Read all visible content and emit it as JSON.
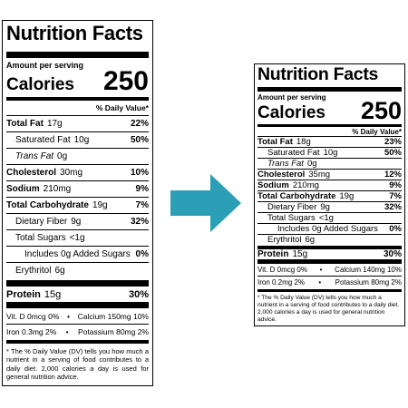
{
  "left": {
    "title": "Nutrition Facts",
    "amount_per_serving": "Amount per serving",
    "calories_label": "Calories",
    "calories_value": "250",
    "dv_header": "% Daily Value*",
    "rows": [
      {
        "label": "Total Fat",
        "amount": "17g",
        "dv": "22%",
        "bold": true,
        "indent": 0
      },
      {
        "label": "Saturated Fat",
        "amount": "10g",
        "dv": "50%",
        "bold": false,
        "indent": 1
      },
      {
        "label": "Trans Fat",
        "amount": "0g",
        "dv": "",
        "bold": false,
        "indent": 1,
        "italic": true
      },
      {
        "label": "Cholesterol",
        "amount": "30mg",
        "dv": "10%",
        "bold": true,
        "indent": 0
      },
      {
        "label": "Sodium",
        "amount": "210mg",
        "dv": "9%",
        "bold": true,
        "indent": 0
      },
      {
        "label": "Total Carbohydrate",
        "amount": "19g",
        "dv": "7%",
        "bold": true,
        "indent": 0
      },
      {
        "label": "Dietary Fiber",
        "amount": "9g",
        "dv": "32%",
        "bold": false,
        "indent": 1
      },
      {
        "label": "Total Sugars",
        "amount": "<1g",
        "dv": "",
        "bold": false,
        "indent": 1
      },
      {
        "label": "Includes 0g Added Sugars",
        "amount": "",
        "dv": "0%",
        "bold": false,
        "indent": 2
      },
      {
        "label": "Erythritol",
        "amount": "6g",
        "dv": "",
        "bold": false,
        "indent": 1
      }
    ],
    "protein": {
      "label": "Protein",
      "amount": "15g",
      "dv": "30%"
    },
    "vitamins": [
      [
        "Vit. D 0mcg 0%",
        "Calcium 150mg 10%"
      ],
      [
        "Iron 0.3mg 2%",
        "Potassium 80mg 2%"
      ]
    ],
    "footnote": "* The % Daily Value (DV) tells you how much a nutrient in a serving of food contributes to a daily diet. 2,000 calories a day is used for general nutrition advice."
  },
  "right": {
    "title": "Nutrition Facts",
    "amount_per_serving": "Amount per serving",
    "calories_label": "Calories",
    "calories_value": "250",
    "dv_header": "% Daily Value*",
    "rows": [
      {
        "label": "Total Fat",
        "amount": "18g",
        "dv": "23%",
        "bold": true,
        "indent": 0
      },
      {
        "label": "Saturated Fat",
        "amount": "10g",
        "dv": "50%",
        "bold": false,
        "indent": 1
      },
      {
        "label": "Trans Fat",
        "amount": "0g",
        "dv": "",
        "bold": false,
        "indent": 1,
        "italic": true
      },
      {
        "label": "Cholesterol",
        "amount": "35mg",
        "dv": "12%",
        "bold": true,
        "indent": 0
      },
      {
        "label": "Sodium",
        "amount": "210mg",
        "dv": "9%",
        "bold": true,
        "indent": 0
      },
      {
        "label": "Total Carbohydrate",
        "amount": "19g",
        "dv": "7%",
        "bold": true,
        "indent": 0
      },
      {
        "label": "Dietary Fiber",
        "amount": "9g",
        "dv": "32%",
        "bold": false,
        "indent": 1
      },
      {
        "label": "Total Sugars",
        "amount": "<1g",
        "dv": "",
        "bold": false,
        "indent": 1
      },
      {
        "label": "Includes 0g Added Sugars",
        "amount": "",
        "dv": "0%",
        "bold": false,
        "indent": 2
      },
      {
        "label": "Erythritol",
        "amount": "6g",
        "dv": "",
        "bold": false,
        "indent": 1
      }
    ],
    "protein": {
      "label": "Protein",
      "amount": "15g",
      "dv": "30%"
    },
    "vitamins": [
      [
        "Vit. D 0mcg 0%",
        "Calcium 140mg 10%"
      ],
      [
        "Iron 0.2mg 2%",
        "Potassium 80mg 2%"
      ]
    ],
    "footnote": "* The % Daily Value (DV) tells you how much a nutrient in a serving of food contributes to a daily diet. 2,000 calories a day is used for general nutrition advice."
  },
  "arrow_color": "#2a9fb5"
}
